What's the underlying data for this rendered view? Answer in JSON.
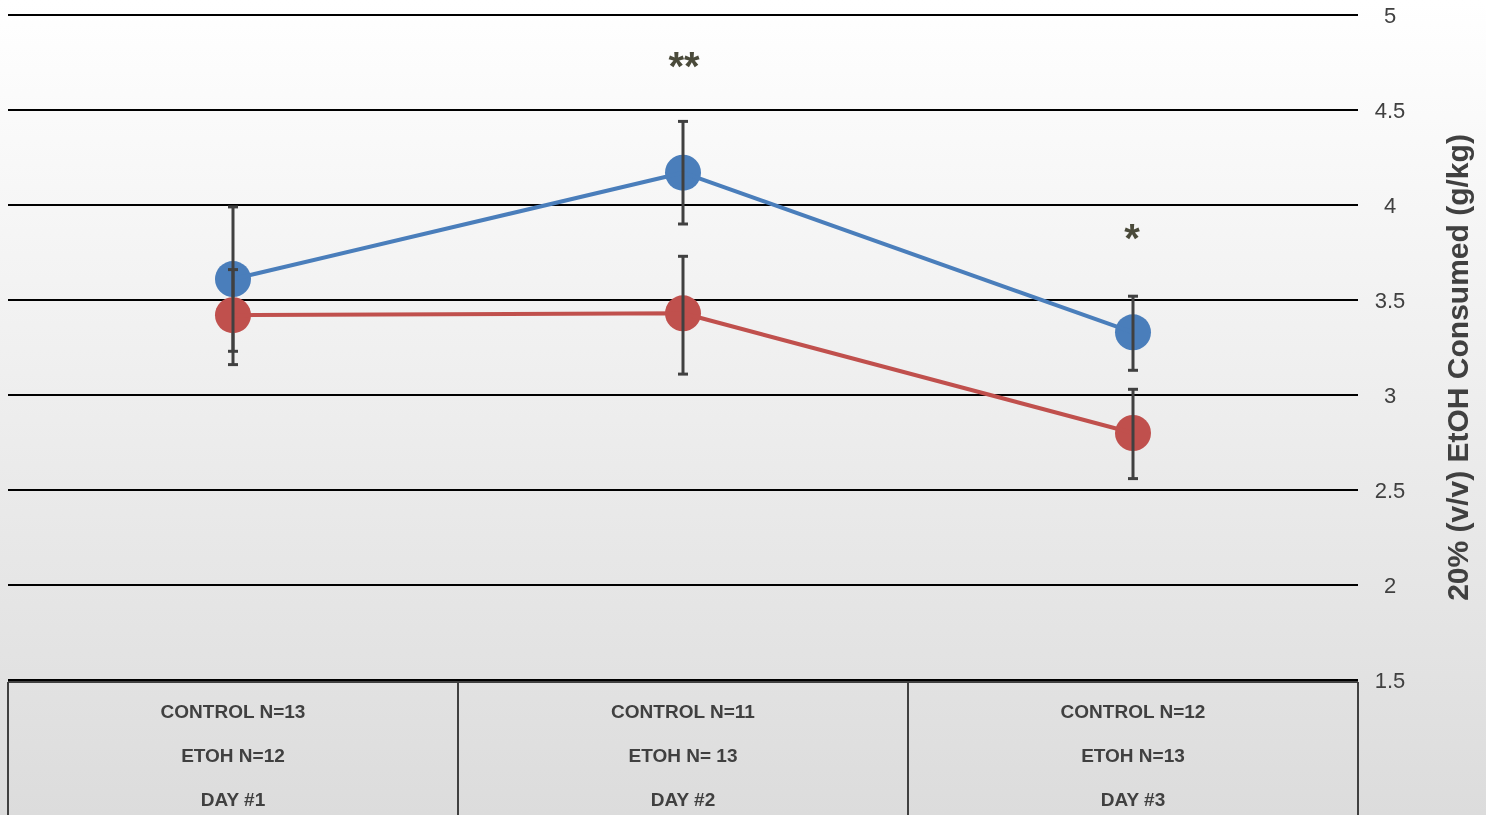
{
  "chart_data": {
    "type": "line",
    "ylabel": "20% (v/v) EtOH Consumed (g/kg)",
    "categories": [
      "CONTROL N=13\nETOH N=12\nDAY #1",
      "CONTROL N=11\nETOH N= 13\nDAY #2",
      "CONTROL N=12\nETOH N=13\nDAY #3"
    ],
    "series": [
      {
        "color": "#4a7ebb",
        "values": [
          3.61,
          4.17,
          3.33
        ],
        "errors": [
          [
            3.23,
            3.99
          ],
          [
            3.9,
            4.44
          ],
          [
            3.13,
            3.52
          ]
        ]
      },
      {
        "color": "#c0504d",
        "values": [
          3.42,
          3.43,
          2.8
        ],
        "errors": [
          [
            3.16,
            3.66
          ],
          [
            3.11,
            3.73
          ],
          [
            2.56,
            3.03
          ]
        ]
      }
    ],
    "annotations": [
      "**",
      "*"
    ],
    "ylim": [
      1.5,
      5
    ],
    "yticks": [
      1.5,
      2,
      2.5,
      3,
      3.5,
      4,
      4.5,
      5
    ],
    "grid": "y",
    "marker": "circle"
  }
}
